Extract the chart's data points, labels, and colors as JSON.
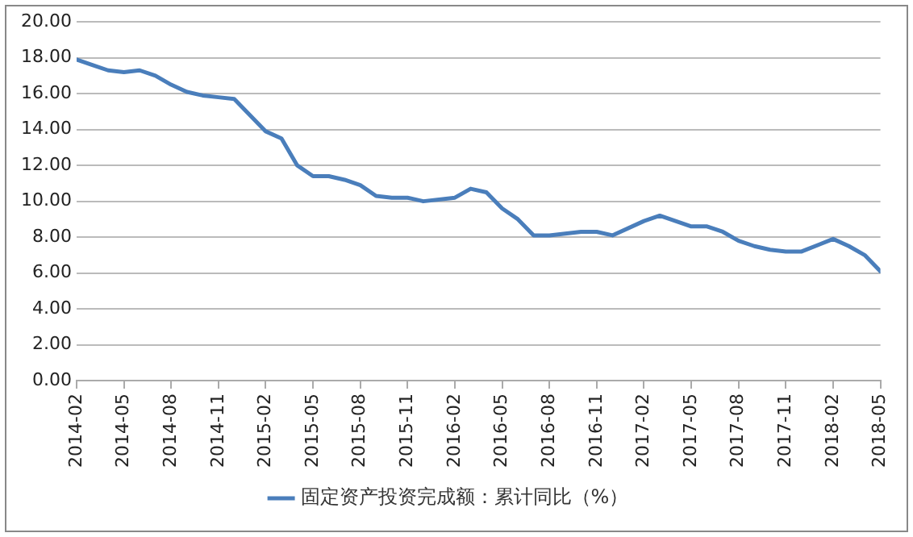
{
  "chart_data": {
    "type": "line",
    "x": [
      "2014-02",
      "2014-03",
      "2014-04",
      "2014-05",
      "2014-06",
      "2014-07",
      "2014-08",
      "2014-09",
      "2014-10",
      "2014-11",
      "2014-12",
      "2015-02",
      "2015-03",
      "2015-04",
      "2015-05",
      "2015-06",
      "2015-07",
      "2015-08",
      "2015-09",
      "2015-10",
      "2015-11",
      "2015-12",
      "2016-02",
      "2016-03",
      "2016-04",
      "2016-05",
      "2016-06",
      "2016-07",
      "2016-08",
      "2016-09",
      "2016-10",
      "2016-11",
      "2016-12",
      "2017-02",
      "2017-03",
      "2017-04",
      "2017-05",
      "2017-06",
      "2017-07",
      "2017-08",
      "2017-09",
      "2017-10",
      "2017-11",
      "2017-12",
      "2018-02",
      "2018-03",
      "2018-04",
      "2018-05"
    ],
    "series": [
      {
        "name": "固定资产投资完成额：累计同比（%）",
        "color": "#4a7ebb",
        "values": [
          17.9,
          17.6,
          17.3,
          17.2,
          17.3,
          17.0,
          16.5,
          16.1,
          15.9,
          15.8,
          15.7,
          13.9,
          13.5,
          12.0,
          11.4,
          11.4,
          11.2,
          10.9,
          10.3,
          10.2,
          10.2,
          10.0,
          10.2,
          10.7,
          10.5,
          9.6,
          9.0,
          8.1,
          8.1,
          8.2,
          8.3,
          8.3,
          8.1,
          8.9,
          9.2,
          8.9,
          8.6,
          8.6,
          8.3,
          7.8,
          7.5,
          7.3,
          7.2,
          7.2,
          7.9,
          7.5,
          7.0,
          6.1
        ]
      }
    ],
    "xlim": [
      "2014-02",
      "2018-05"
    ],
    "xticks": [
      "2014-02",
      "2014-05",
      "2014-08",
      "2014-11",
      "2015-02",
      "2015-05",
      "2015-08",
      "2015-11",
      "2016-02",
      "2016-05",
      "2016-08",
      "2016-11",
      "2017-02",
      "2017-05",
      "2017-08",
      "2017-11",
      "2018-02",
      "2018-05"
    ],
    "ylim": [
      0,
      20
    ],
    "yticks": [
      {
        "value": 0,
        "label": "0.00"
      },
      {
        "value": 2,
        "label": "2.00"
      },
      {
        "value": 4,
        "label": "4.00"
      },
      {
        "value": 6,
        "label": "6.00"
      },
      {
        "value": 8,
        "label": "8.00"
      },
      {
        "value": 10,
        "label": "10.00"
      },
      {
        "value": 12,
        "label": "12.00"
      },
      {
        "value": 14,
        "label": "14.00"
      },
      {
        "value": 16,
        "label": "16.00"
      },
      {
        "value": 18,
        "label": "18.00"
      },
      {
        "value": 20,
        "label": "20.00"
      }
    ],
    "grid": "y",
    "legend": "bottom",
    "marker": "none",
    "line_style": "solid"
  }
}
